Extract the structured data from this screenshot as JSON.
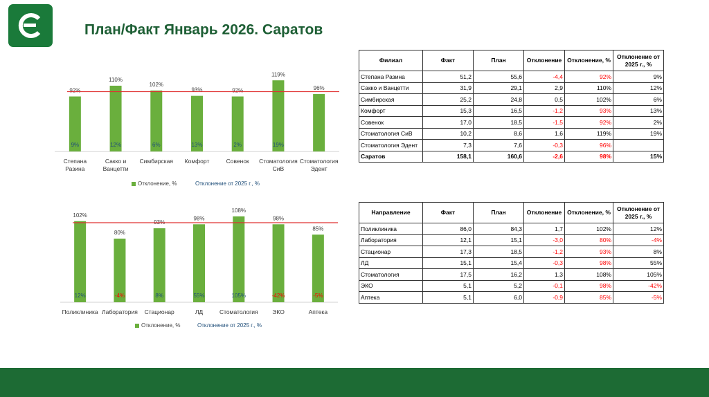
{
  "header": {
    "title": "План/Факт Январь 2026. Саратов"
  },
  "chart_data": [
    {
      "type": "bar",
      "categories": [
        "Степана Разина",
        "Сакко и Ванцетти",
        "Симбирская",
        "Комфорт",
        "Совенок",
        "Стоматология СиВ",
        "Стоматология Эдент"
      ],
      "series": [
        {
          "name": "Отклонение, %",
          "color": "#6aaf3d",
          "values": [
            92,
            110,
            102,
            93,
            92,
            119,
            96
          ],
          "value_labels": [
            "92%",
            "110%",
            "102%",
            "93%",
            "92%",
            "119%",
            "96%"
          ]
        },
        {
          "name": "Отклонение от 2025 г., %",
          "color": "#1f4e79",
          "negative_color": "#ff0000",
          "values": [
            9,
            12,
            6,
            13,
            2,
            19,
            null
          ],
          "value_labels": [
            "9%",
            "12%",
            "6%",
            "13%",
            "2%",
            "19%",
            null
          ]
        }
      ],
      "ylim": [
        0,
        140
      ],
      "reference_line": {
        "value": 100,
        "color": "#e03030"
      },
      "legend": "bottom"
    },
    {
      "type": "bar",
      "categories": [
        "Поликлиника",
        "Лаборатория",
        "Стационар",
        "ЛД",
        "Стоматология",
        "ЭКО",
        "Аптека"
      ],
      "series": [
        {
          "name": "Отклонение, %",
          "color": "#6aaf3d",
          "values": [
            102,
            80,
            93,
            98,
            108,
            98,
            85
          ],
          "value_labels": [
            "102%",
            "80%",
            "93%",
            "98%",
            "108%",
            "98%",
            "85%"
          ]
        },
        {
          "name": "Отклонение от 2025 г., %",
          "color": "#1f4e79",
          "negative_color": "#ff0000",
          "values": [
            12,
            -4,
            8,
            55,
            105,
            -42,
            -5
          ],
          "value_labels": [
            "12%",
            "-4%",
            "8%",
            "55%",
            "105%",
            "-42%",
            "-5%"
          ]
        }
      ],
      "ylim": [
        0,
        120
      ],
      "reference_line": {
        "value": 100,
        "color": "#e03030"
      },
      "legend": "bottom"
    }
  ],
  "table1": {
    "header": [
      "Филиал",
      "Факт",
      "План",
      "Отклонение",
      "Отклонение, %",
      "Отклонение от 2025 г., %"
    ],
    "rows": [
      [
        "Степана Разина",
        "51,2",
        "55,6",
        "-4,4",
        "92%",
        "9%"
      ],
      [
        "Сакко и Ванцетти",
        "31,9",
        "29,1",
        "2,9",
        "110%",
        "12%"
      ],
      [
        "Симбирская",
        "25,2",
        "24,8",
        "0,5",
        "102%",
        "6%"
      ],
      [
        "Комфорт",
        "15,3",
        "16,5",
        "-1,2",
        "93%",
        "13%"
      ],
      [
        "Совенок",
        "17,0",
        "18,5",
        "-1,5",
        "92%",
        "2%"
      ],
      [
        "Стоматология СиВ",
        "10,2",
        "8,6",
        "1,6",
        "119%",
        "19%"
      ],
      [
        "Стоматология Эдент",
        "7,3",
        "7,6",
        "-0,3",
        "96%",
        null
      ],
      [
        "Саратов",
        "158,1",
        "160,6",
        "-2,6",
        "98%",
        "15%"
      ]
    ]
  },
  "table2": {
    "header": [
      "Направление",
      "Факт",
      "План",
      "Отклонение",
      "Отклонение, %",
      "Отклонение от 2025 г., %"
    ],
    "rows": [
      [
        "Поликлиника",
        "86,0",
        "84,3",
        "1,7",
        "102%",
        "12%"
      ],
      [
        "Лаборатория",
        "12,1",
        "15,1",
        "-3,0",
        "80%",
        "-4%"
      ],
      [
        "Стационар",
        "17,3",
        "18,5",
        "-1,2",
        "93%",
        "8%"
      ],
      [
        "ЛД",
        "15,1",
        "15,4",
        "-0,3",
        "98%",
        "55%"
      ],
      [
        "Стоматология",
        "17,5",
        "16,2",
        "1,3",
        "108%",
        "105%"
      ],
      [
        "ЭКО",
        "5,1",
        "5,2",
        "-0,1",
        "98%",
        "-42%"
      ],
      [
        "Аптека",
        "5,1",
        "6,0",
        "-0,9",
        "85%",
        "-5%"
      ]
    ]
  }
}
